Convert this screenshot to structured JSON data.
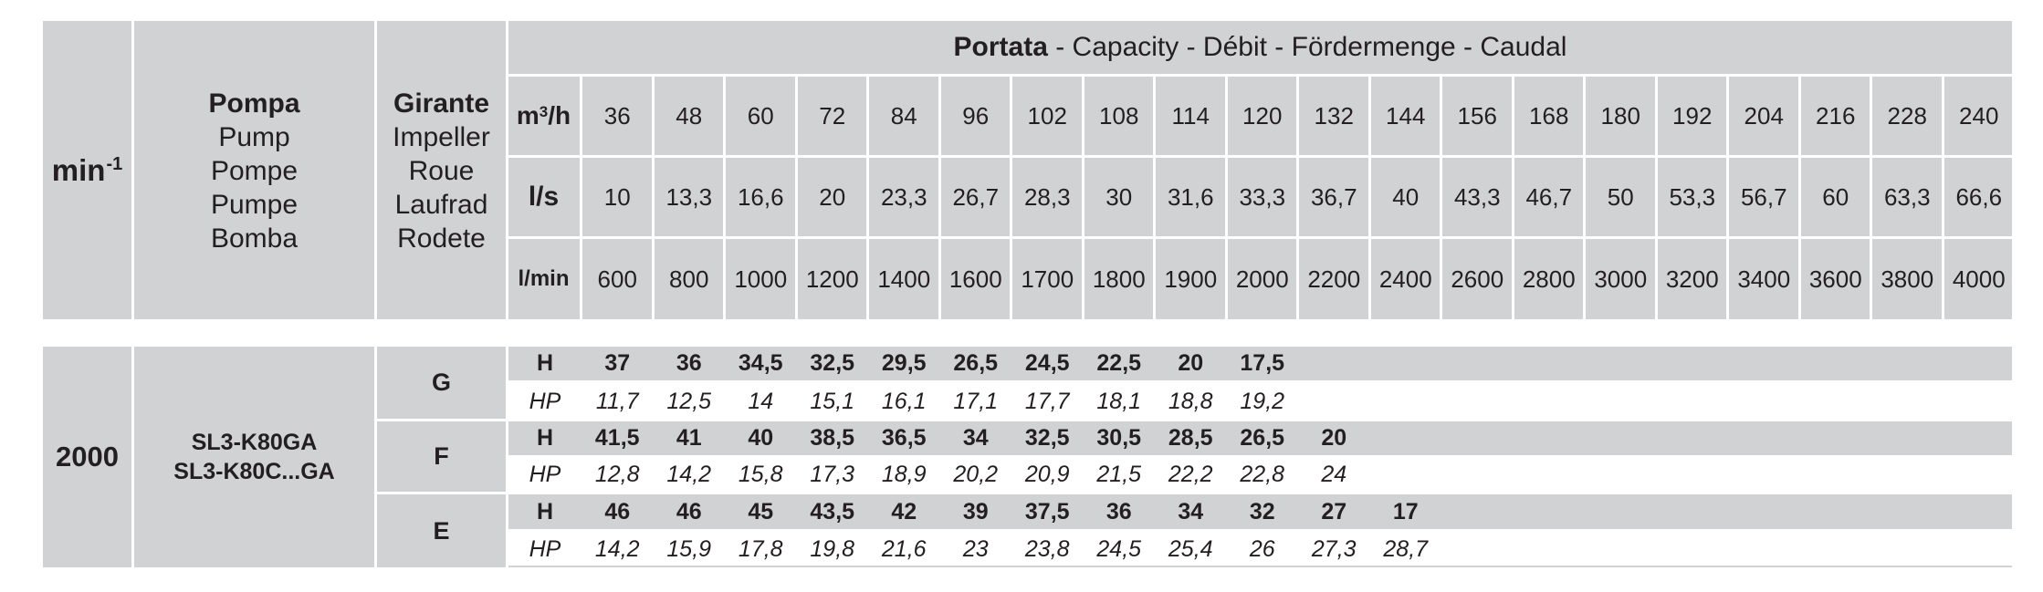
{
  "header": {
    "rpm_label": "min",
    "rpm_sup": "-1",
    "pump": [
      "Pompa",
      "Pump",
      "Pompe",
      "Pumpe",
      "Bomba"
    ],
    "impeller": [
      "Girante",
      "Impeller",
      "Roue",
      "Laufrad",
      "Rodete"
    ],
    "capacity_bold": "Portata",
    "capacity_rest": " - Capacity - Débit - Fördermenge - Caudal",
    "units": {
      "m3h": "m",
      "m3h_sup": "3",
      "m3h_tail": "/h",
      "ls": "l/s",
      "lmin": "l/min"
    },
    "m3h": [
      "36",
      "48",
      "60",
      "72",
      "84",
      "96",
      "102",
      "108",
      "114",
      "120",
      "132",
      "144",
      "156",
      "168",
      "180",
      "192",
      "204",
      "216",
      "228",
      "240"
    ],
    "ls": [
      "10",
      "13,3",
      "16,6",
      "20",
      "23,3",
      "26,7",
      "28,3",
      "30",
      "31,6",
      "33,3",
      "36,7",
      "40",
      "43,3",
      "46,7",
      "50",
      "53,3",
      "56,7",
      "60",
      "63,3",
      "66,6"
    ],
    "lmin": [
      "600",
      "800",
      "1000",
      "1200",
      "1400",
      "1600",
      "1700",
      "1800",
      "1900",
      "2000",
      "2200",
      "2400",
      "2600",
      "2800",
      "3000",
      "3200",
      "3400",
      "3600",
      "3800",
      "4000"
    ]
  },
  "body": {
    "rpm": "2000",
    "models": [
      "SL3-K80GA",
      "SL3-K80C...GA"
    ],
    "impellers": [
      {
        "name": "G",
        "h_label": "H",
        "hp_label": "HP",
        "H": [
          "37",
          "36",
          "34,5",
          "32,5",
          "29,5",
          "26,5",
          "24,5",
          "22,5",
          "20",
          "17,5"
        ],
        "HP": [
          "11,7",
          "12,5",
          "14",
          "15,1",
          "16,1",
          "17,1",
          "17,7",
          "18,1",
          "18,8",
          "19,2"
        ]
      },
      {
        "name": "F",
        "h_label": "H",
        "hp_label": "HP",
        "H": [
          "41,5",
          "41",
          "40",
          "38,5",
          "36,5",
          "34",
          "32,5",
          "30,5",
          "28,5",
          "26,5",
          "20"
        ],
        "HP": [
          "12,8",
          "14,2",
          "15,8",
          "17,3",
          "18,9",
          "20,2",
          "20,9",
          "21,5",
          "22,2",
          "22,8",
          "24"
        ]
      },
      {
        "name": "E",
        "h_label": "H",
        "hp_label": "HP",
        "H": [
          "46",
          "46",
          "45",
          "43,5",
          "42",
          "39",
          "37,5",
          "36",
          "34",
          "32",
          "27",
          "17"
        ],
        "HP": [
          "14,2",
          "15,9",
          "17,8",
          "19,8",
          "21,6",
          "23",
          "23,8",
          "24,5",
          "25,4",
          "26",
          "27,3",
          "28,7"
        ]
      }
    ]
  }
}
